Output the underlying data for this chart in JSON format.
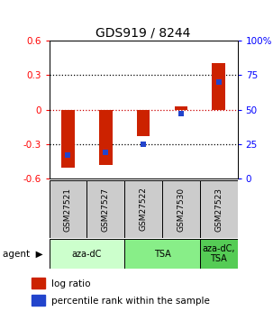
{
  "title": "GDS919 / 8244",
  "samples": [
    "GSM27521",
    "GSM27527",
    "GSM27522",
    "GSM27530",
    "GSM27523"
  ],
  "log_ratios": [
    -0.5,
    -0.48,
    -0.23,
    0.03,
    0.4
  ],
  "percentile_ranks": [
    17,
    19,
    25,
    47,
    70
  ],
  "ylim_left": [
    -0.6,
    0.6
  ],
  "ylim_right": [
    0,
    100
  ],
  "yticks_left": [
    -0.6,
    -0.3,
    0.0,
    0.3,
    0.6
  ],
  "yticks_right": [
    0,
    25,
    50,
    75,
    100
  ],
  "ytick_labels_left": [
    "-0.6",
    "-0.3",
    "0",
    "0.3",
    "0.6"
  ],
  "ytick_labels_right": [
    "0",
    "25",
    "50",
    "75",
    "100%"
  ],
  "agent_groups": [
    {
      "label": "aza-dC",
      "span": [
        0,
        2
      ],
      "color": "#ccffcc"
    },
    {
      "label": "TSA",
      "span": [
        2,
        4
      ],
      "color": "#88ee88"
    },
    {
      "label": "aza-dC,\nTSA",
      "span": [
        4,
        5
      ],
      "color": "#55cc55"
    }
  ],
  "bar_color": "#cc2200",
  "dot_color": "#2244cc",
  "bar_width": 0.35,
  "dot_size": 22,
  "zero_line_color": "#cc0000",
  "background_plot": "#ffffff",
  "background_label": "#cccccc",
  "legend_red_label": "log ratio",
  "legend_blue_label": "percentile rank within the sample"
}
